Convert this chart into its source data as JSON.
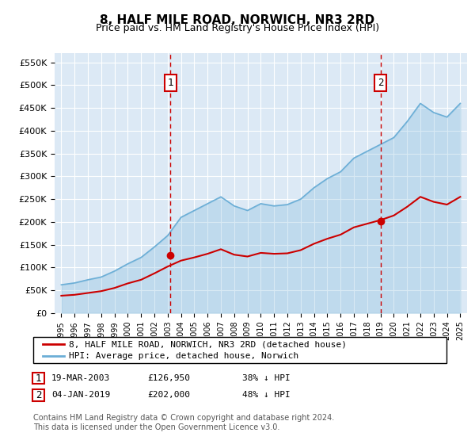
{
  "title": "8, HALF MILE ROAD, NORWICH, NR3 2RD",
  "subtitle": "Price paid vs. HM Land Registry's House Price Index (HPI)",
  "background_color": "#dce9f5",
  "plot_bg_color": "#dce9f5",
  "ylim": [
    0,
    570000
  ],
  "yticks": [
    0,
    50000,
    100000,
    150000,
    200000,
    250000,
    300000,
    350000,
    400000,
    450000,
    500000,
    550000
  ],
  "ytick_labels": [
    "£0",
    "£50K",
    "£100K",
    "£150K",
    "£200K",
    "£250K",
    "£300K",
    "£350K",
    "£400K",
    "£450K",
    "£500K",
    "£550K"
  ],
  "hpi_years": [
    1995,
    1996,
    1997,
    1998,
    1999,
    2000,
    2001,
    2002,
    2003,
    2004,
    2005,
    2006,
    2007,
    2008,
    2009,
    2010,
    2011,
    2012,
    2013,
    2014,
    2015,
    2016,
    2017,
    2018,
    2019,
    2020,
    2021,
    2022,
    2023,
    2024,
    2025
  ],
  "hpi_values": [
    62000,
    66000,
    73000,
    79000,
    92000,
    108000,
    122000,
    145000,
    170000,
    210000,
    225000,
    240000,
    255000,
    235000,
    225000,
    240000,
    235000,
    238000,
    250000,
    275000,
    295000,
    310000,
    340000,
    355000,
    370000,
    385000,
    420000,
    460000,
    440000,
    430000,
    460000
  ],
  "hpi_color": "#6baed6",
  "price_paid_line_years": [
    1995,
    1996,
    1997,
    1998,
    1999,
    2000,
    2001,
    2002,
    2003,
    2004,
    2005,
    2006,
    2007,
    2008,
    2009,
    2010,
    2011,
    2012,
    2013,
    2014,
    2015,
    2016,
    2017,
    2018,
    2019,
    2020,
    2021,
    2022,
    2023,
    2024,
    2025
  ],
  "price_paid_line_values": [
    38000,
    40000,
    44000,
    48000,
    55000,
    65000,
    73000,
    87000,
    102000,
    115000,
    122000,
    130000,
    140000,
    128000,
    124000,
    132000,
    130000,
    131000,
    138000,
    152000,
    163000,
    172000,
    188000,
    196000,
    204000,
    214000,
    233000,
    255000,
    244000,
    238000,
    255000
  ],
  "price_paid_color": "#cc0000",
  "marker1_year": 2003.2,
  "marker1_value": 126950,
  "marker1_label": "1",
  "marker1_date": "19-MAR-2003",
  "marker1_price": "£126,950",
  "marker1_pct": "38% ↓ HPI",
  "marker2_year": 2019.0,
  "marker2_value": 202000,
  "marker2_label": "2",
  "marker2_date": "04-JAN-2019",
  "marker2_price": "£202,000",
  "marker2_pct": "48% ↓ HPI",
  "legend_line1": "8, HALF MILE ROAD, NORWICH, NR3 2RD (detached house)",
  "legend_line2": "HPI: Average price, detached house, Norwich",
  "footer": "Contains HM Land Registry data © Crown copyright and database right 2024.\nThis data is licensed under the Open Government Licence v3.0.",
  "vline_color": "#cc0000",
  "marker_box_color": "#cc0000",
  "grid_color": "#ffffff"
}
